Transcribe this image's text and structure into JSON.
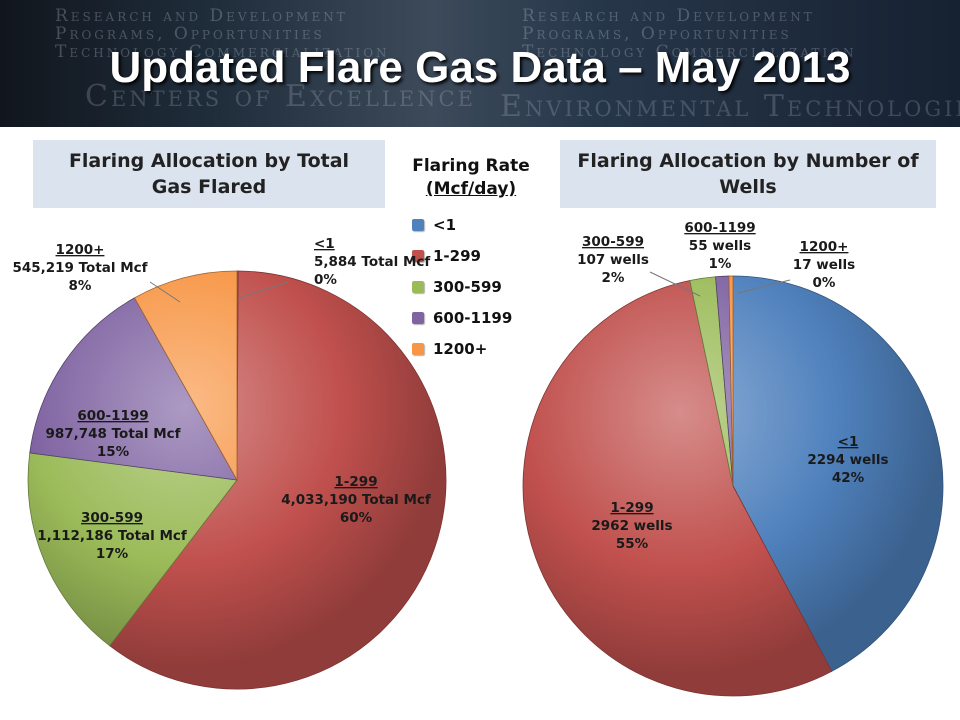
{
  "slide": {
    "title": "Updated Flare Gas Data – May 2013",
    "banner_text": [
      "Research and Development",
      "Programs, Opportunities",
      "Technology Commercialization",
      "Centers of Excellence",
      "Environmental Technologies"
    ]
  },
  "legend": {
    "title_line1": "Flaring Rate",
    "title_line2": "(Mcf/day)",
    "items": [
      {
        "label": "<1",
        "color": "#4f81bd"
      },
      {
        "label": "1-299",
        "color": "#c0504d"
      },
      {
        "label": "300-599",
        "color": "#9bbb59"
      },
      {
        "label": "600-1199",
        "color": "#8064a2"
      },
      {
        "label": "1200+",
        "color": "#f79646"
      }
    ]
  },
  "chart_data": [
    {
      "type": "pie",
      "title": "Flaring Allocation by Total Gas Flared",
      "categories": [
        "<1",
        "1-299",
        "300-599",
        "600-1199",
        "1200+"
      ],
      "values": [
        5884,
        4033190,
        1112186,
        987748,
        545219
      ],
      "value_labels": [
        "5,884 Total Mcf",
        "4,033,190 Total Mcf",
        "1,112,186 Total Mcf",
        "987,748 Total Mcf",
        "545,219 Total Mcf"
      ],
      "percent_labels": [
        "0%",
        "60%",
        "17%",
        "15%",
        "8%"
      ],
      "colors": [
        "#4f81bd",
        "#c0504d",
        "#9bbb59",
        "#8064a2",
        "#f79646"
      ]
    },
    {
      "type": "pie",
      "title": "Flaring Allocation by Number of Wells",
      "categories": [
        "<1",
        "1-299",
        "300-599",
        "600-1199",
        "1200+"
      ],
      "values": [
        2294,
        2962,
        107,
        55,
        17
      ],
      "value_labels": [
        "2294 wells",
        "2962 wells",
        "107 wells",
        "55 wells",
        "17 wells"
      ],
      "percent_labels": [
        "42%",
        "55%",
        "2%",
        "1%",
        "0%"
      ],
      "colors": [
        "#4f81bd",
        "#c0504d",
        "#9bbb59",
        "#8064a2",
        "#f79646"
      ]
    }
  ]
}
